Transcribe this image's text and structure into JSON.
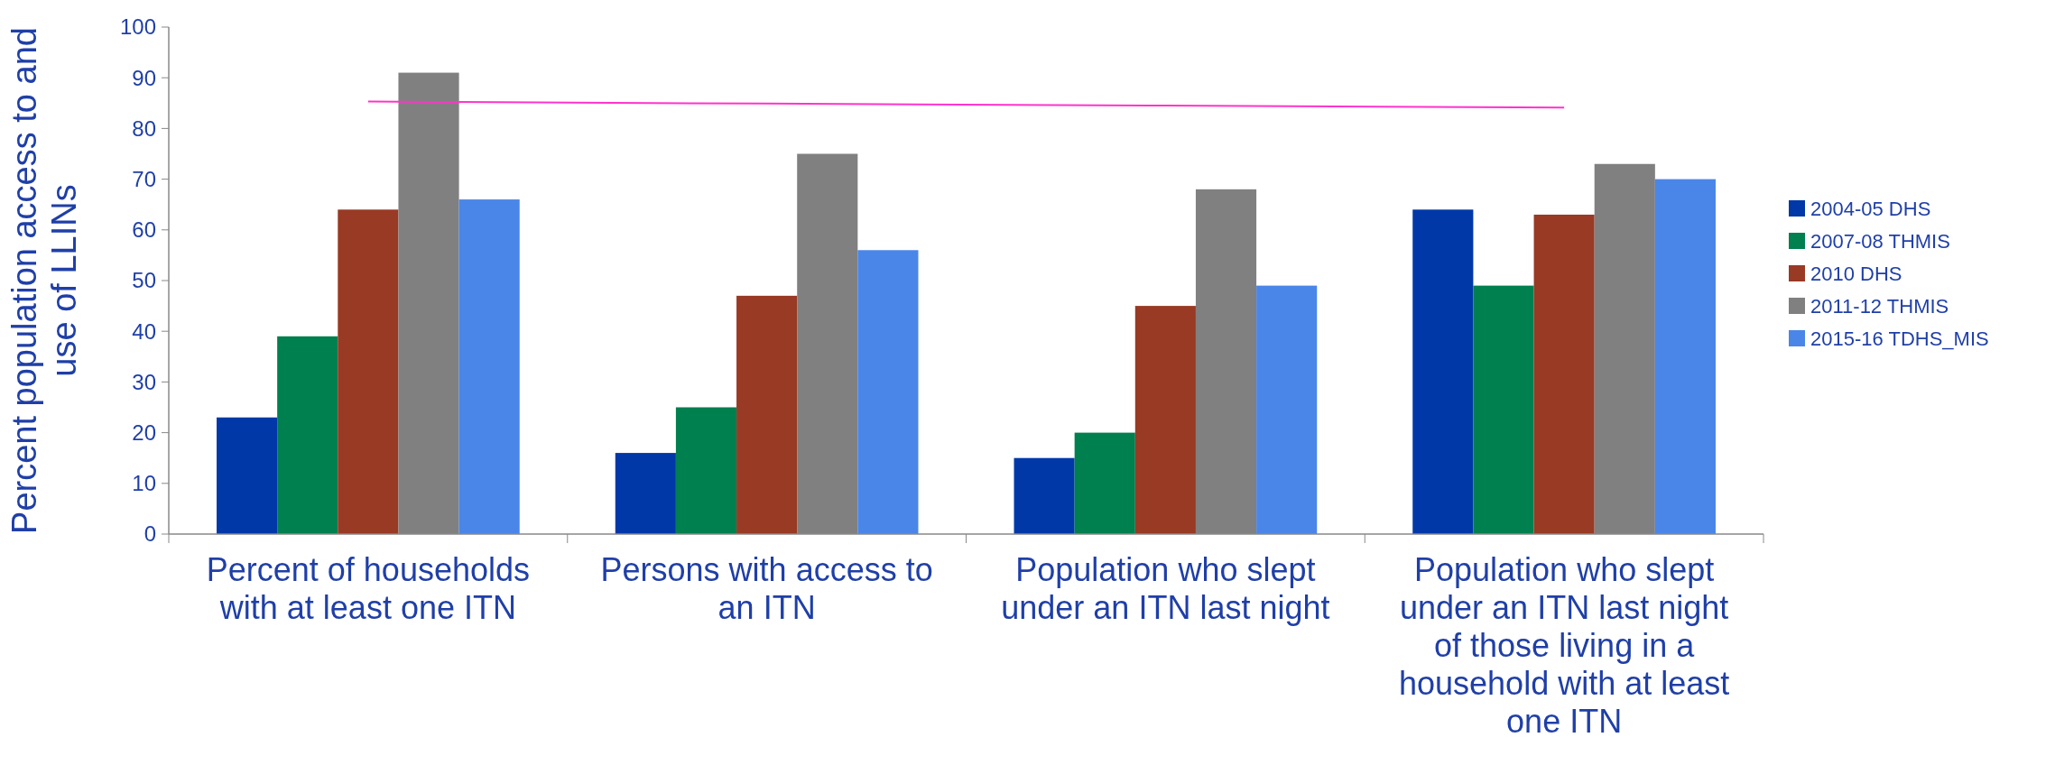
{
  "chart_data": {
    "type": "bar",
    "ylabel": "Percent  population  access to and use of LLINs",
    "categories": [
      "Percent of households with at least one ITN",
      "Persons with access to an  ITN",
      "Population who slept under an  ITN last night",
      "Population who slept under an ITN last night of those living in a household with at least one  ITN"
    ],
    "series": [
      {
        "name": "2004-05 DHS",
        "color": "#0038a8",
        "values": [
          23,
          16,
          15,
          64
        ]
      },
      {
        "name": "2007-08 THMIS",
        "color": "#007f4f",
        "values": [
          39,
          25,
          20,
          49
        ]
      },
      {
        "name": "2010 DHS",
        "color": "#983a24",
        "values": [
          64,
          47,
          45,
          63
        ]
      },
      {
        "name": "2011-12 THMIS",
        "color": "#808080",
        "values": [
          91,
          75,
          68,
          73
        ]
      },
      {
        "name": "2015-16 TDHS_MIS",
        "color": "#4a86e8",
        "values": [
          66,
          56,
          49,
          70
        ]
      },
      {
        "type": "line",
        "color": "#ff33cc",
        "values": [
          85.3,
          84.9,
          84.5,
          84.1
        ],
        "marker": "none"
      }
    ],
    "ylim": [
      0,
      100
    ],
    "yticks": [
      0,
      10,
      20,
      30,
      40,
      50,
      60,
      70,
      80,
      90,
      100
    ],
    "legend": "right",
    "grid": false
  }
}
